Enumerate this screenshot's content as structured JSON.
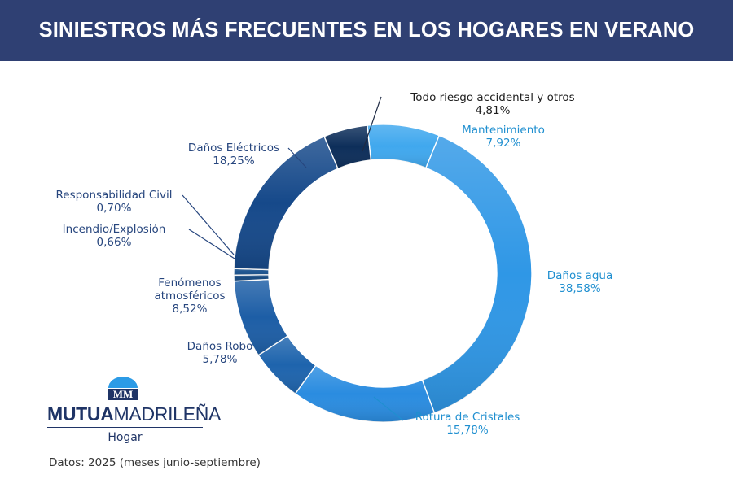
{
  "header": {
    "title": "SINIESTROS MÁS FRECUENTES EN LOS HOGARES EN VERANO"
  },
  "chart_data": {
    "type": "pie",
    "variant": "donut",
    "title": "SINIESTROS MÁS FRECUENTES EN LOS HOGARES EN VERANO",
    "start_angle_deg": -6,
    "direction": "clockwise",
    "slices": [
      {
        "label": "Mantenimiento",
        "value_label": "7,92%",
        "value": 7.92,
        "color": "#40a8ee",
        "label_color": "#1f8fd0"
      },
      {
        "label": "Daños agua",
        "value_label": "38,58%",
        "value": 38.58,
        "color": "#2f97e6",
        "label_color": "#1f8fd0"
      },
      {
        "label": "Rotura de Cristales",
        "value_label": "15,78%",
        "value": 15.78,
        "color": "#2a8ce0",
        "label_color": "#1f8fd0"
      },
      {
        "label": "Daños Robo",
        "value_label": "5,78%",
        "value": 5.78,
        "color": "#1e64ad",
        "label_color": "#27467e"
      },
      {
        "label": "Fenómenos atmosféricos",
        "value_label": "8,52%",
        "value": 8.52,
        "color": "#1d5ea6",
        "label_color": "#27467e"
      },
      {
        "label": "Incendio/Explosión",
        "value_label": "0,66%",
        "value": 0.66,
        "color": "#17497f",
        "label_color": "#27467e"
      },
      {
        "label": "Responsabilidad Civil",
        "value_label": "0,70%",
        "value": 0.7,
        "color": "#1a528e",
        "label_color": "#27467e"
      },
      {
        "label": "Daños Eléctricos",
        "value_label": "18,25%",
        "value": 18.25,
        "color": "#16498a",
        "label_color": "#27467e"
      },
      {
        "label": "Todo riesgo accidental y otros",
        "value_label": "4,81%",
        "value": 4.81,
        "color": "#0d2e5a",
        "label_color": "#1e1e1e"
      }
    ]
  },
  "logo": {
    "brand_bold": "MUTUA",
    "brand_regular": "MADRILEÑA",
    "sub": "Hogar",
    "mark_letters": "MM"
  },
  "footer": {
    "source": "Datos: 2025 (meses junio-septiembre)"
  }
}
